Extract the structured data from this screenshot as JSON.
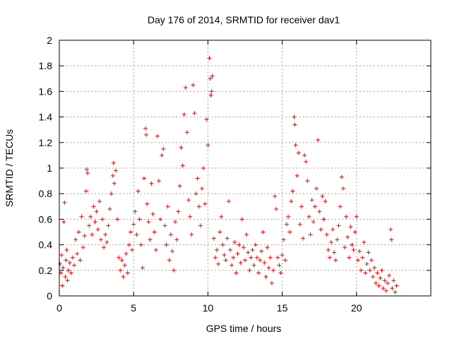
{
  "chart_data": {
    "type": "scatter",
    "title": "Day 176 of 2014, SRMTID for receiver dav1",
    "xlabel": "GPS time / hours",
    "ylabel": "SRMTID / TECUs",
    "xlim": [
      0,
      25
    ],
    "ylim": [
      0,
      2
    ],
    "x_ticks": [
      0,
      5,
      10,
      15,
      20
    ],
    "x_tick_labels": [
      "0",
      "5",
      "10",
      "15",
      "20"
    ],
    "y_ticks": [
      0,
      0.2,
      0.4,
      0.6,
      0.8,
      1,
      1.2,
      1.4,
      1.6,
      1.8,
      2
    ],
    "y_tick_labels": [
      "0",
      "0.2",
      "0.4",
      "0.6",
      "0.8",
      "1",
      "1.2",
      "1.4",
      "1.6",
      "1.8",
      "2"
    ],
    "grid": true,
    "marker": "+",
    "color": "#ff0000",
    "series": [
      {
        "name": "dav1",
        "points": [
          [
            0.05,
            0.25
          ],
          [
            0.1,
            0.18
          ],
          [
            0.15,
            0.32
          ],
          [
            0.2,
            0.08
          ],
          [
            0.25,
            0.22
          ],
          [
            0.3,
            0.58
          ],
          [
            0.35,
            0.73
          ],
          [
            0.4,
            0.15
          ],
          [
            0.45,
            0.28
          ],
          [
            0.5,
            0.36
          ],
          [
            0.55,
            0.12
          ],
          [
            0.6,
            0.2
          ],
          [
            0.7,
            0.26
          ],
          [
            0.8,
            0.18
          ],
          [
            0.9,
            0.3
          ],
          [
            1.0,
            0.24
          ],
          [
            1.1,
            0.44
          ],
          [
            1.2,
            0.33
          ],
          [
            1.3,
            0.5
          ],
          [
            1.4,
            0.28
          ],
          [
            1.5,
            0.62
          ],
          [
            1.6,
            0.38
          ],
          [
            1.7,
            0.47
          ],
          [
            1.8,
            0.82
          ],
          [
            1.85,
            0.99
          ],
          [
            1.9,
            0.96
          ],
          [
            2.0,
            0.55
          ],
          [
            2.1,
            0.62
          ],
          [
            2.2,
            0.48
          ],
          [
            2.3,
            0.7
          ],
          [
            2.4,
            0.58
          ],
          [
            2.5,
            0.66
          ],
          [
            2.6,
            0.52
          ],
          [
            2.7,
            0.74
          ],
          [
            2.8,
            0.44
          ],
          [
            2.9,
            0.6
          ],
          [
            3.0,
            0.38
          ],
          [
            3.1,
            0.48
          ],
          [
            3.2,
            0.42
          ],
          [
            3.3,
            0.55
          ],
          [
            3.4,
            0.68
          ],
          [
            3.5,
            0.8
          ],
          [
            3.6,
            0.94
          ],
          [
            3.65,
            1.04
          ],
          [
            3.7,
            0.88
          ],
          [
            3.8,
            0.98
          ],
          [
            3.9,
            0.6
          ],
          [
            4.0,
            0.3
          ],
          [
            4.1,
            0.2
          ],
          [
            4.2,
            0.28
          ],
          [
            4.3,
            0.15
          ],
          [
            4.4,
            0.24
          ],
          [
            4.5,
            0.33
          ],
          [
            4.6,
            0.18
          ],
          [
            4.7,
            0.4
          ],
          [
            4.8,
            0.5
          ],
          [
            4.9,
            0.36
          ],
          [
            5.0,
            0.56
          ],
          [
            5.1,
            0.66
          ],
          [
            5.2,
            0.48
          ],
          [
            5.3,
            0.82
          ],
          [
            5.4,
            0.6
          ],
          [
            5.5,
            0.4
          ],
          [
            5.6,
            0.22
          ],
          [
            5.7,
            0.92
          ],
          [
            5.8,
            1.31
          ],
          [
            5.85,
            1.26
          ],
          [
            5.9,
            0.72
          ],
          [
            6.0,
            0.58
          ],
          [
            6.1,
            0.44
          ],
          [
            6.2,
            0.88
          ],
          [
            6.3,
            0.64
          ],
          [
            6.4,
            0.5
          ],
          [
            6.5,
            0.36
          ],
          [
            6.6,
            1.25
          ],
          [
            6.7,
            0.9
          ],
          [
            6.8,
            0.6
          ],
          [
            6.9,
            1.1
          ],
          [
            7.0,
            1.15
          ],
          [
            7.1,
            0.55
          ],
          [
            7.2,
            0.4
          ],
          [
            7.3,
            0.7
          ],
          [
            7.4,
            0.28
          ],
          [
            7.5,
            0.48
          ],
          [
            7.6,
            0.35
          ],
          [
            7.7,
            0.2
          ],
          [
            7.8,
            0.58
          ],
          [
            7.9,
            0.44
          ],
          [
            8.0,
            0.66
          ],
          [
            8.1,
            0.86
          ],
          [
            8.2,
            1.16
          ],
          [
            8.3,
            1.02
          ],
          [
            8.4,
            1.42
          ],
          [
            8.5,
            1.63
          ],
          [
            8.6,
            1.28
          ],
          [
            8.7,
            0.75
          ],
          [
            8.8,
            0.62
          ],
          [
            8.9,
            0.48
          ],
          [
            9.0,
            1.65
          ],
          [
            9.1,
            1.43
          ],
          [
            9.2,
            0.8
          ],
          [
            9.3,
            0.92
          ],
          [
            9.4,
            0.7
          ],
          [
            9.5,
            0.55
          ],
          [
            9.6,
            0.84
          ],
          [
            9.7,
            1.0
          ],
          [
            9.8,
            0.72
          ],
          [
            9.9,
            1.38
          ],
          [
            10.0,
            1.18
          ],
          [
            10.1,
            1.86
          ],
          [
            10.15,
            1.7
          ],
          [
            10.2,
            1.57
          ],
          [
            10.25,
            1.6
          ],
          [
            10.3,
            1.72
          ],
          [
            10.4,
            0.45
          ],
          [
            10.5,
            0.3
          ],
          [
            10.6,
            0.36
          ],
          [
            10.7,
            0.25
          ],
          [
            10.8,
            0.5
          ],
          [
            10.9,
            0.62
          ],
          [
            11.0,
            0.4
          ],
          [
            11.1,
            0.32
          ],
          [
            11.2,
            0.28
          ],
          [
            11.3,
            0.45
          ],
          [
            11.4,
            0.74
          ],
          [
            11.5,
            0.36
          ],
          [
            11.6,
            0.24
          ],
          [
            11.7,
            0.3
          ],
          [
            11.8,
            0.42
          ],
          [
            11.9,
            0.18
          ],
          [
            12.0,
            0.33
          ],
          [
            12.1,
            0.4
          ],
          [
            12.2,
            0.26
          ],
          [
            12.3,
            0.6
          ],
          [
            12.4,
            0.38
          ],
          [
            12.5,
            0.28
          ],
          [
            12.6,
            0.48
          ],
          [
            12.7,
            0.34
          ],
          [
            12.8,
            0.2
          ],
          [
            12.9,
            0.3
          ],
          [
            13.0,
            0.36
          ],
          [
            13.1,
            0.24
          ],
          [
            13.2,
            0.4
          ],
          [
            13.3,
            0.3
          ],
          [
            13.4,
            0.18
          ],
          [
            13.5,
            0.28
          ],
          [
            13.6,
            0.35
          ],
          [
            13.7,
            0.5
          ],
          [
            13.8,
            0.26
          ],
          [
            13.9,
            0.15
          ],
          [
            14.0,
            0.38
          ],
          [
            14.1,
            0.22
          ],
          [
            14.2,
            0.3
          ],
          [
            14.3,
            0.1
          ],
          [
            14.4,
            0.2
          ],
          [
            14.5,
            0.78
          ],
          [
            14.6,
            0.68
          ],
          [
            14.7,
            0.3
          ],
          [
            14.8,
            0.24
          ],
          [
            14.9,
            0.18
          ],
          [
            15.0,
            0.32
          ],
          [
            15.1,
            0.44
          ],
          [
            15.2,
            0.28
          ],
          [
            15.3,
            0.56
          ],
          [
            15.4,
            0.62
          ],
          [
            15.5,
            0.5
          ],
          [
            15.6,
            0.74
          ],
          [
            15.7,
            0.82
          ],
          [
            15.8,
            1.4
          ],
          [
            15.85,
            1.34
          ],
          [
            15.9,
            1.18
          ],
          [
            16.0,
            0.94
          ],
          [
            16.1,
            1.12
          ],
          [
            16.2,
            0.56
          ],
          [
            16.3,
            0.7
          ],
          [
            16.4,
            0.45
          ],
          [
            16.5,
            1.1
          ],
          [
            16.6,
            1.05
          ],
          [
            16.7,
            0.9
          ],
          [
            16.8,
            0.62
          ],
          [
            16.9,
            0.48
          ],
          [
            17.0,
            0.75
          ],
          [
            17.1,
            0.58
          ],
          [
            17.2,
            0.7
          ],
          [
            17.3,
            0.84
          ],
          [
            17.4,
            1.22
          ],
          [
            17.5,
            0.66
          ],
          [
            17.6,
            0.52
          ],
          [
            17.7,
            0.78
          ],
          [
            17.8,
            0.6
          ],
          [
            17.9,
            0.74
          ],
          [
            18.0,
            0.48
          ],
          [
            18.1,
            0.36
          ],
          [
            18.2,
            0.3
          ],
          [
            18.3,
            0.42
          ],
          [
            18.4,
            0.52
          ],
          [
            18.5,
            0.34
          ],
          [
            18.6,
            0.28
          ],
          [
            18.7,
            0.44
          ],
          [
            18.8,
            0.55
          ],
          [
            18.9,
            0.7
          ],
          [
            19.0,
            0.93
          ],
          [
            19.1,
            0.84
          ],
          [
            19.2,
            0.38
          ],
          [
            19.3,
            0.62
          ],
          [
            19.4,
            0.46
          ],
          [
            19.5,
            0.3
          ],
          [
            19.6,
            0.54
          ],
          [
            19.7,
            0.4
          ],
          [
            19.8,
            0.36
          ],
          [
            19.9,
            0.5
          ],
          [
            20.0,
            0.62
          ],
          [
            20.1,
            0.28
          ],
          [
            20.2,
            0.35
          ],
          [
            20.3,
            0.2
          ],
          [
            20.4,
            0.3
          ],
          [
            20.5,
            0.42
          ],
          [
            20.6,
            0.18
          ],
          [
            20.7,
            0.25
          ],
          [
            20.8,
            0.34
          ],
          [
            20.9,
            0.2
          ],
          [
            21.0,
            0.28
          ],
          [
            21.1,
            0.15
          ],
          [
            21.2,
            0.22
          ],
          [
            21.3,
            0.1
          ],
          [
            21.4,
            0.18
          ],
          [
            21.5,
            0.08
          ],
          [
            21.6,
            0.14
          ],
          [
            21.7,
            0.2
          ],
          [
            21.8,
            0.06
          ],
          [
            21.9,
            0.12
          ],
          [
            22.0,
            0.04
          ],
          [
            22.1,
            0.1
          ],
          [
            22.2,
            0.16
          ],
          [
            22.3,
            0.52
          ],
          [
            22.35,
            0.44
          ],
          [
            22.4,
            0.06
          ],
          [
            22.5,
            0.12
          ],
          [
            22.6,
            0.03
          ],
          [
            22.7,
            0.08
          ]
        ]
      }
    ]
  }
}
